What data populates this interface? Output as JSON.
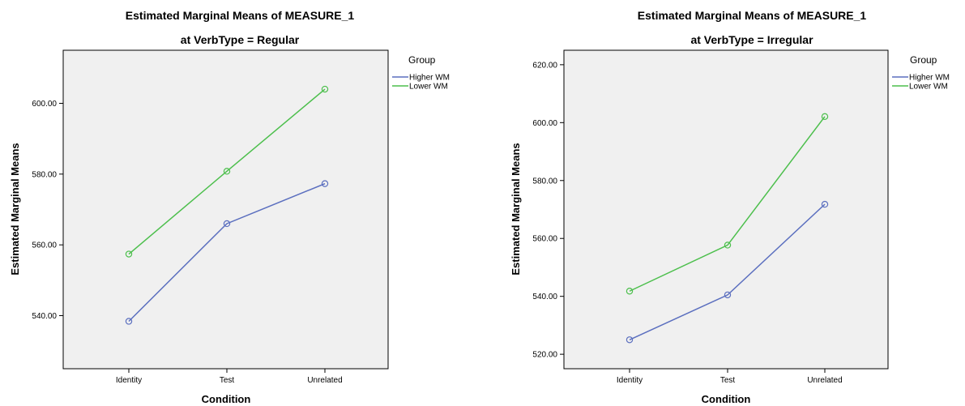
{
  "chart_data": [
    {
      "type": "line",
      "title": "Estimated Marginal Means of MEASURE_1",
      "subtitle": "at VerbType = Regular",
      "xlabel": "Condition",
      "ylabel": "Estimated Marginal Means",
      "categories": [
        "Identity",
        "Test",
        "Unrelated"
      ],
      "ylim": [
        525,
        615
      ],
      "yticks": [
        "540.00",
        "560.00",
        "580.00",
        "600.00"
      ],
      "grid": false,
      "legend": {
        "title": "Group",
        "placement": "right"
      },
      "series": [
        {
          "name": "Higher WM",
          "color": "#5b6fbf",
          "values": [
            538.4,
            566.0,
            577.3
          ]
        },
        {
          "name": "Lower WM",
          "color": "#4cbf4c",
          "values": [
            557.4,
            580.8,
            604.0
          ]
        }
      ]
    },
    {
      "type": "line",
      "title": "Estimated Marginal Means of MEASURE_1",
      "subtitle": "at VerbType = Irregular",
      "xlabel": "Condition",
      "ylabel": "Estimated Marginal Means",
      "categories": [
        "Identity",
        "Test",
        "Unrelated"
      ],
      "ylim": [
        515,
        625
      ],
      "yticks": [
        "520.00",
        "540.00",
        "560.00",
        "580.00",
        "600.00",
        "620.00"
      ],
      "grid": false,
      "legend": {
        "title": "Group",
        "placement": "right"
      },
      "series": [
        {
          "name": "Higher WM",
          "color": "#5b6fbf",
          "values": [
            525.0,
            540.5,
            571.8
          ]
        },
        {
          "name": "Lower WM",
          "color": "#4cbf4c",
          "values": [
            541.8,
            557.7,
            602.1
          ]
        }
      ]
    }
  ]
}
